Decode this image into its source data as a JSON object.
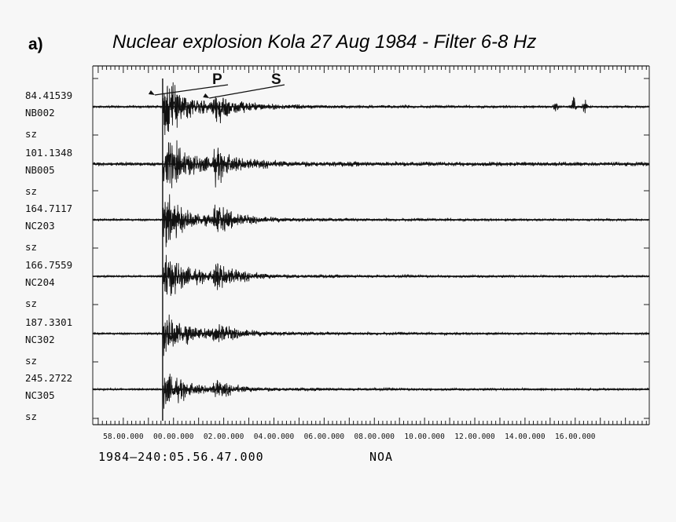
{
  "panel_label": "a)",
  "title": "Nuclear explosion Kola 27 Aug 1984 - Filter 6-8 Hz",
  "footer": {
    "time_origin": "1984—240:05.56.47.000",
    "network": "NOA"
  },
  "phases": [
    {
      "label": "P",
      "time_s": 167
    },
    {
      "label": "S",
      "time_s": 286
    }
  ],
  "colors": {
    "trace": "#111111",
    "background": "#f7f7f7",
    "axis": "#222222"
  },
  "chart_data": {
    "type": "line",
    "title": "Nuclear explosion Kola 27 Aug 1984 - Filter 6-8 Hz",
    "xlabel": "",
    "ylabel": "",
    "x_unit": "seconds from 05:56:47.000 (minutes.seconds tick format)",
    "xlim": [
      0,
      1330
    ],
    "x_ticks": [
      {
        "value": 73,
        "label": "58.00.000"
      },
      {
        "value": 193,
        "label": "00.00.000"
      },
      {
        "value": 313,
        "label": "02.00.000"
      },
      {
        "value": 433,
        "label": "04.00.000"
      },
      {
        "value": 553,
        "label": "06.00.000"
      },
      {
        "value": 673,
        "label": "08.00.000"
      },
      {
        "value": 793,
        "label": "10.00.000"
      },
      {
        "value": 913,
        "label": "12.00.000"
      },
      {
        "value": 1033,
        "label": "14.00.000"
      },
      {
        "value": 1153,
        "label": "16.00.000"
      }
    ],
    "grid": false,
    "legend": "none",
    "series": [
      {
        "name": "NB002",
        "distance": "84.41539",
        "component": "sz",
        "p_amp": 1.0,
        "s_amp": 0.55,
        "late_burst": true,
        "pre_event": [],
        "noise": 0.03
      },
      {
        "name": "NB005",
        "distance": "101.1348",
        "component": "sz",
        "p_amp": 0.9,
        "s_amp": 0.5,
        "late_burst": false,
        "pre_event": [
          268
        ],
        "noise": 0.06
      },
      {
        "name": "NC203",
        "distance": "164.7117",
        "component": "sz",
        "p_amp": 0.85,
        "s_amp": 0.55,
        "late_burst": false,
        "pre_event": [],
        "noise": 0.03
      },
      {
        "name": "NC204",
        "distance": "166.7559",
        "component": "sz",
        "p_amp": 0.8,
        "s_amp": 0.5,
        "late_burst": false,
        "pre_event": [],
        "noise": 0.03
      },
      {
        "name": "NC302",
        "distance": "187.3301",
        "component": "sz",
        "p_amp": 0.75,
        "s_amp": 0.35,
        "late_burst": false,
        "pre_event": [],
        "noise": 0.03
      },
      {
        "name": "NC305",
        "distance": "245.2722",
        "component": "sz",
        "p_amp": 0.6,
        "s_amp": 0.25,
        "late_burst": false,
        "pre_event": [],
        "noise": 0.03
      }
    ]
  }
}
